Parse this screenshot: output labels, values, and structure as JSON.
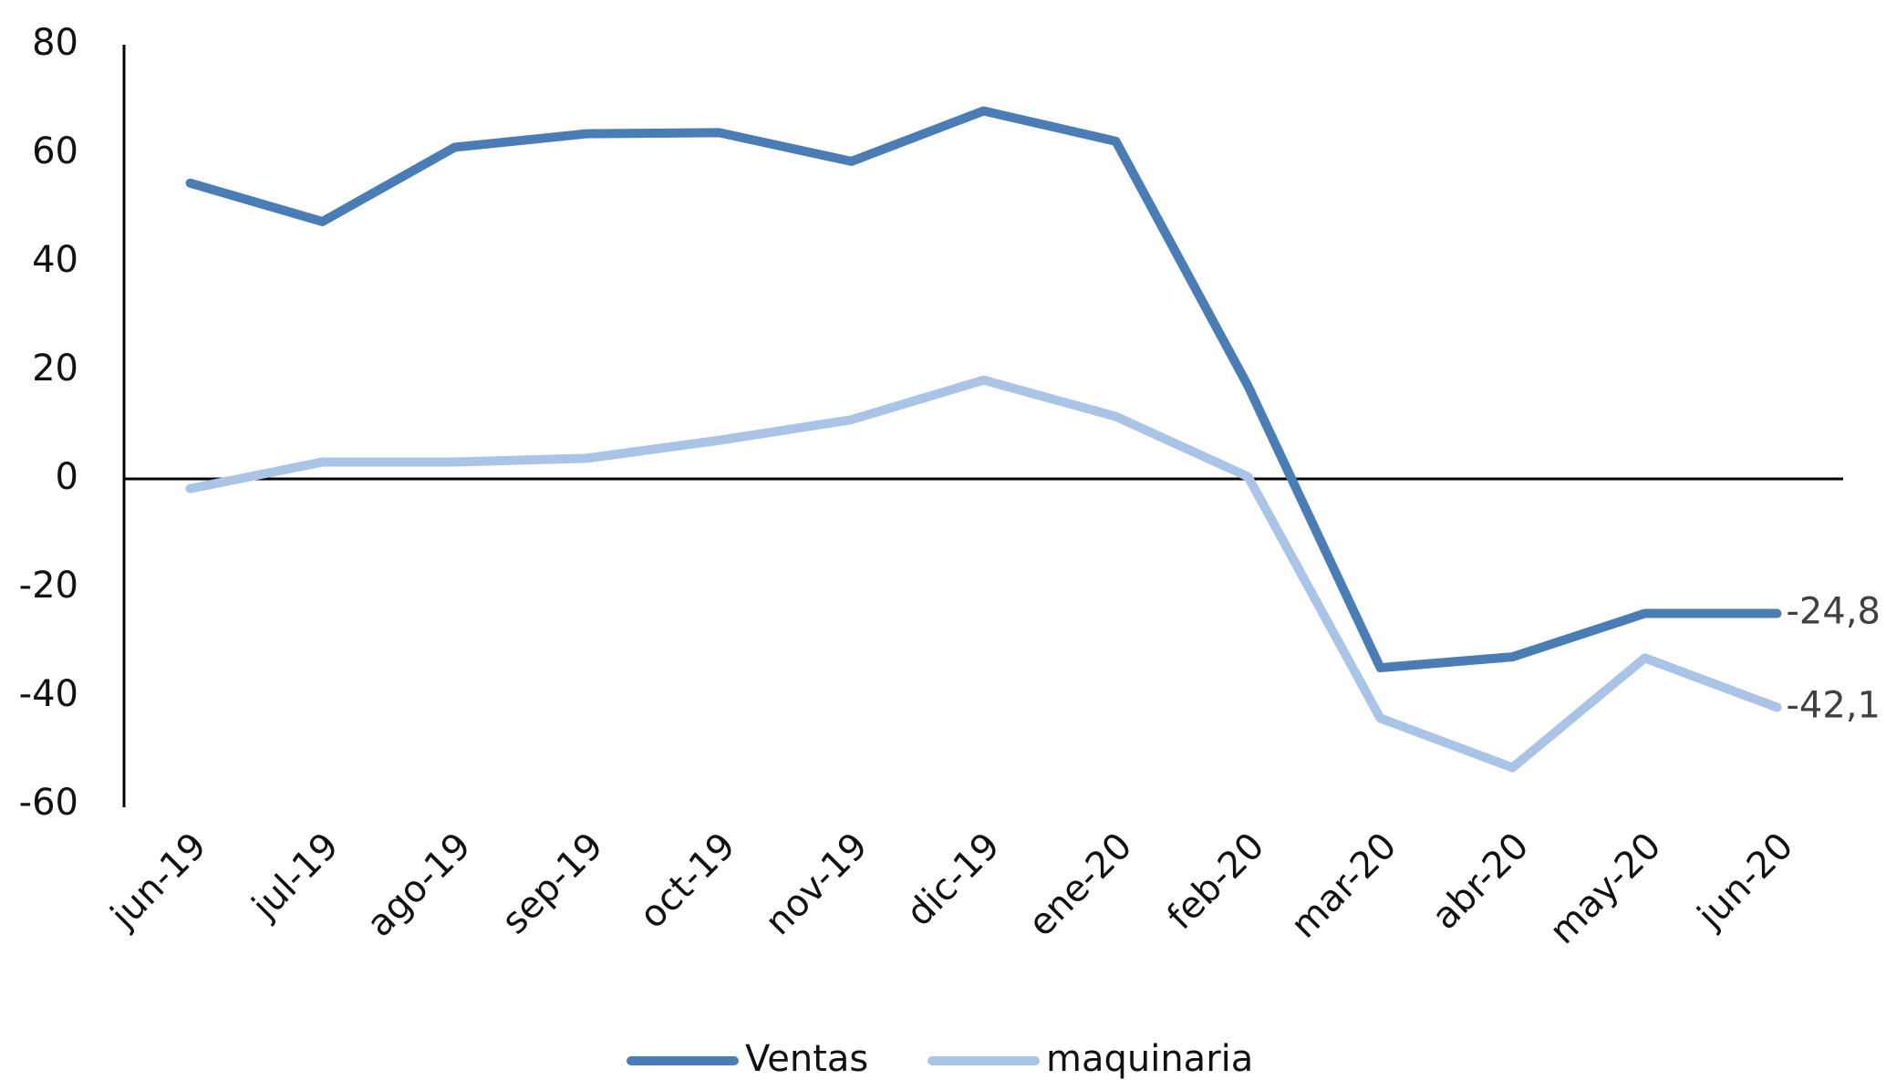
{
  "chart_data": {
    "type": "line",
    "categories": [
      "jun-19",
      "jul-19",
      "ago-19",
      "sep-19",
      "oct-19",
      "nov-19",
      "dic-19",
      "ene-20",
      "feb-20",
      "mar-20",
      "abr-20",
      "may-20",
      "jun-20"
    ],
    "series": [
      {
        "name": "Ventas",
        "color": "#4a7db5",
        "values": [
          54.5,
          47.4,
          61.1,
          63.6,
          63.8,
          58.5,
          67.8,
          62.2,
          17.1,
          -34.8,
          -32.8,
          -24.8,
          -24.8
        ],
        "value_labels": [
          null,
          null,
          null,
          null,
          null,
          null,
          null,
          null,
          null,
          null,
          null,
          null,
          "-24,8"
        ]
      },
      {
        "name": "maquinaria",
        "color": "#a9c4e6",
        "values": [
          -1.8,
          3.1,
          3.1,
          3.8,
          7.1,
          10.9,
          18.2,
          11.5,
          0.4,
          -44.1,
          -53.2,
          -33.0,
          -42.1
        ],
        "value_labels": [
          null,
          null,
          null,
          null,
          null,
          null,
          null,
          null,
          null,
          null,
          null,
          null,
          "-42,1"
        ]
      }
    ],
    "ylim": [
      -60,
      80
    ],
    "yticks": [
      -60,
      -40,
      -20,
      0,
      20,
      40,
      60,
      80
    ],
    "grid": false,
    "legend": "bottom"
  }
}
